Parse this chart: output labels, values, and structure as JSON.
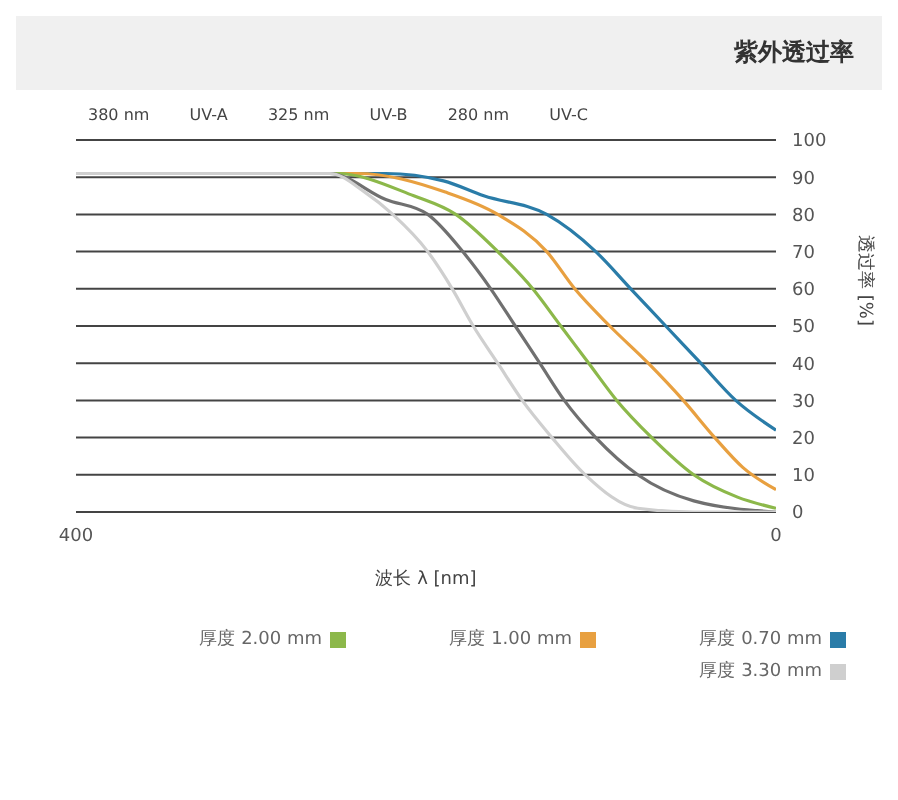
{
  "chart_data": {
    "type": "line",
    "title": "紫外透过率",
    "xlabel": "波长 λ [nm]",
    "ylabel": "透过率 [%]",
    "annotations": [
      "380 nm",
      "UV-A",
      "325 nm",
      "UV-B",
      "280 nm",
      "UV-C"
    ],
    "xlim": [
      400,
      0
    ],
    "xticks": [
      400,
      0
    ],
    "ylim": [
      0,
      100
    ],
    "yticks": [
      0,
      10,
      20,
      30,
      40,
      50,
      60,
      70,
      80,
      90,
      100
    ],
    "grid": "y",
    "legend": "bottom",
    "marker": "none",
    "line_style": "solid",
    "series": [
      {
        "name": "厚度 0.70 mm",
        "color": "#2a7ca8",
        "x": [
          400,
          255,
          223,
          190,
          167,
          131,
          103,
          83,
          63,
          43,
          23,
          0
        ],
        "values": [
          91,
          91,
          91,
          89,
          85,
          80,
          70,
          60,
          50,
          40,
          30,
          22
        ]
      },
      {
        "name": "厚度 1.00 mm",
        "color": "#e8a040",
        "x": [
          400,
          239,
          189,
          159,
          131,
          115,
          95,
          73,
          53,
          35,
          19,
          0
        ],
        "values": [
          91,
          91,
          86,
          80,
          70,
          60,
          50,
          40,
          30,
          20,
          12,
          6
        ]
      },
      {
        "name": "厚度 2.00 mm",
        "color": "#8cb84a",
        "x": [
          400,
          251,
          207,
          183,
          159,
          139,
          123,
          107,
          91,
          71,
          47,
          22,
          0
        ],
        "values": [
          91,
          91,
          85,
          80,
          70,
          60,
          50,
          40,
          30,
          20,
          10,
          4,
          1
        ]
      },
      {
        "color": "#707070",
        "x": [
          400,
          255,
          223,
          199,
          179,
          163,
          149,
          135,
          121,
          103,
          79,
          47,
          0
        ],
        "values": [
          91,
          91,
          84,
          80,
          70,
          60,
          50,
          40,
          30,
          20,
          10,
          3,
          0
        ]
      },
      {
        "name": "厚度 3.30 mm",
        "color": "#cfcfcf",
        "x": [
          400,
          255,
          235,
          219,
          199,
          185,
          173,
          159,
          145,
          128,
          109,
          79,
          47,
          0
        ],
        "values": [
          91,
          91,
          86,
          80,
          70,
          60,
          50,
          40,
          30,
          20,
          10,
          1,
          0,
          0
        ]
      }
    ]
  }
}
